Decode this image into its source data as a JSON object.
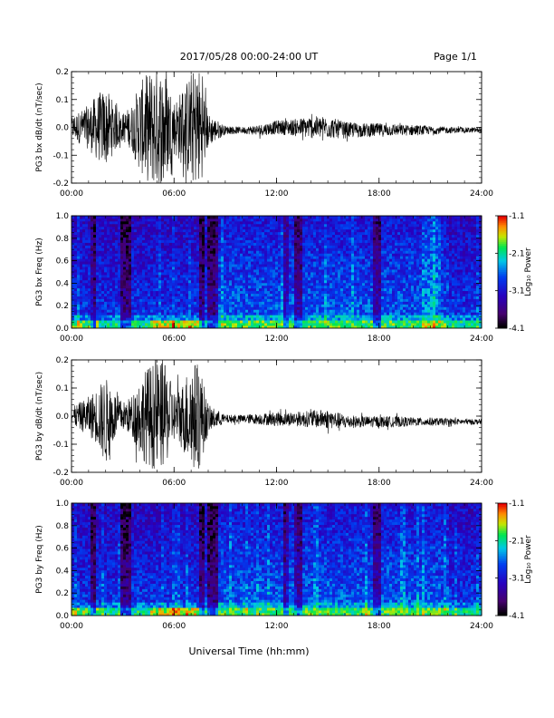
{
  "header": {
    "title": "2017/05/28  00:00-24:00 UT",
    "page": "Page 1/1"
  },
  "footer": {
    "xlabel": "Universal Time (hh:mm)"
  },
  "chart_data": [
    {
      "type": "line",
      "ylabel": "PG3 bx dB/dt (nT/sec)",
      "xticks": [
        "00:00",
        "06:00",
        "12:00",
        "18:00",
        "24:00"
      ],
      "xlim": [
        0,
        24
      ],
      "ylim": [
        -0.2,
        0.2
      ],
      "yticks": [
        "-0.2",
        "-0.1",
        "0.0",
        "0.1",
        "0.2"
      ],
      "series": [
        {
          "x": [
            0,
            0.5,
            1,
            1.5,
            2,
            2.5,
            3,
            3.5,
            4,
            4.5,
            5,
            5.5,
            6,
            6.5,
            7,
            7.5,
            8,
            9,
            10,
            11,
            12,
            13,
            14,
            15,
            16,
            17,
            18,
            19,
            20,
            21,
            22,
            23,
            24
          ],
          "amplitude": [
            0.04,
            0.06,
            0.08,
            0.12,
            0.14,
            0.09,
            0.05,
            0.08,
            0.16,
            0.2,
            0.22,
            0.2,
            0.1,
            0.14,
            0.2,
            0.22,
            0.06,
            0.015,
            0.012,
            0.02,
            0.025,
            0.03,
            0.04,
            0.04,
            0.03,
            0.025,
            0.025,
            0.02,
            0.02,
            0.015,
            0.012,
            0.01,
            0.01
          ],
          "offset": [
            0,
            0,
            0,
            0,
            0,
            0,
            0,
            0,
            0,
            0,
            0,
            0,
            0,
            0,
            0,
            0,
            -0.01,
            -0.01,
            -0.01,
            -0.01,
            0,
            0,
            0,
            0,
            -0.01,
            -0.01,
            -0.01,
            -0.01,
            -0.01,
            -0.01,
            -0.01,
            -0.01,
            -0.01
          ]
        }
      ]
    },
    {
      "type": "heatmap",
      "ylabel": "PG3 bx Freq (Hz)",
      "xticks": [
        "00:00",
        "06:00",
        "12:00",
        "18:00",
        "24:00"
      ],
      "xlim": [
        0,
        24
      ],
      "ylim": [
        0,
        1.0
      ],
      "yticks": [
        "0.0",
        "0.2",
        "0.4",
        "0.6",
        "0.8",
        "1.0"
      ],
      "colorbar": {
        "label": "Log₁₀ Power",
        "ticks": [
          "-1.1",
          "-2.1",
          "-3.1",
          "-4.1"
        ],
        "range": [
          -4.1,
          -1.1
        ]
      }
    },
    {
      "type": "line",
      "ylabel": "PG3 by dB/dt (nT/sec)",
      "xticks": [
        "00:00",
        "06:00",
        "12:00",
        "18:00",
        "24:00"
      ],
      "xlim": [
        0,
        24
      ],
      "ylim": [
        -0.2,
        0.2
      ],
      "yticks": [
        "-0.2",
        "-0.1",
        "0.0",
        "0.1",
        "0.2"
      ],
      "series": [
        {
          "x": [
            0,
            0.5,
            1,
            1.5,
            2,
            2.5,
            3,
            3.5,
            4,
            4.5,
            5,
            5.5,
            6,
            6.5,
            7,
            7.5,
            8,
            9,
            10,
            11,
            12,
            13,
            14,
            15,
            16,
            17,
            18,
            19,
            20,
            21,
            22,
            23,
            24
          ],
          "amplitude": [
            0.03,
            0.05,
            0.07,
            0.1,
            0.16,
            0.09,
            0.05,
            0.07,
            0.14,
            0.18,
            0.2,
            0.18,
            0.09,
            0.12,
            0.2,
            0.19,
            0.05,
            0.015,
            0.015,
            0.02,
            0.025,
            0.025,
            0.03,
            0.035,
            0.025,
            0.02,
            0.02,
            0.02,
            0.015,
            0.015,
            0.012,
            0.01,
            0.01
          ],
          "offset": [
            0,
            0,
            0,
            0,
            -0.02,
            0,
            0,
            0,
            0,
            0,
            0,
            0,
            0,
            0,
            0,
            0,
            -0.01,
            -0.01,
            -0.01,
            -0.01,
            -0.01,
            -0.01,
            -0.01,
            -0.01,
            -0.02,
            -0.02,
            -0.02,
            -0.02,
            -0.02,
            -0.02,
            -0.02,
            -0.02,
            -0.02
          ]
        }
      ]
    },
    {
      "type": "heatmap",
      "ylabel": "PG3 by Freq (Hz)",
      "xticks": [
        "00:00",
        "06:00",
        "12:00",
        "18:00",
        "24:00"
      ],
      "xlim": [
        0,
        24
      ],
      "ylim": [
        0,
        1.0
      ],
      "yticks": [
        "0.0",
        "0.2",
        "0.4",
        "0.6",
        "0.8",
        "1.0"
      ],
      "colorbar": {
        "label": "Log₁₀ Power",
        "ticks": [
          "-1.1",
          "-2.1",
          "-3.1",
          "-4.1"
        ],
        "range": [
          -4.1,
          -1.1
        ]
      }
    }
  ]
}
